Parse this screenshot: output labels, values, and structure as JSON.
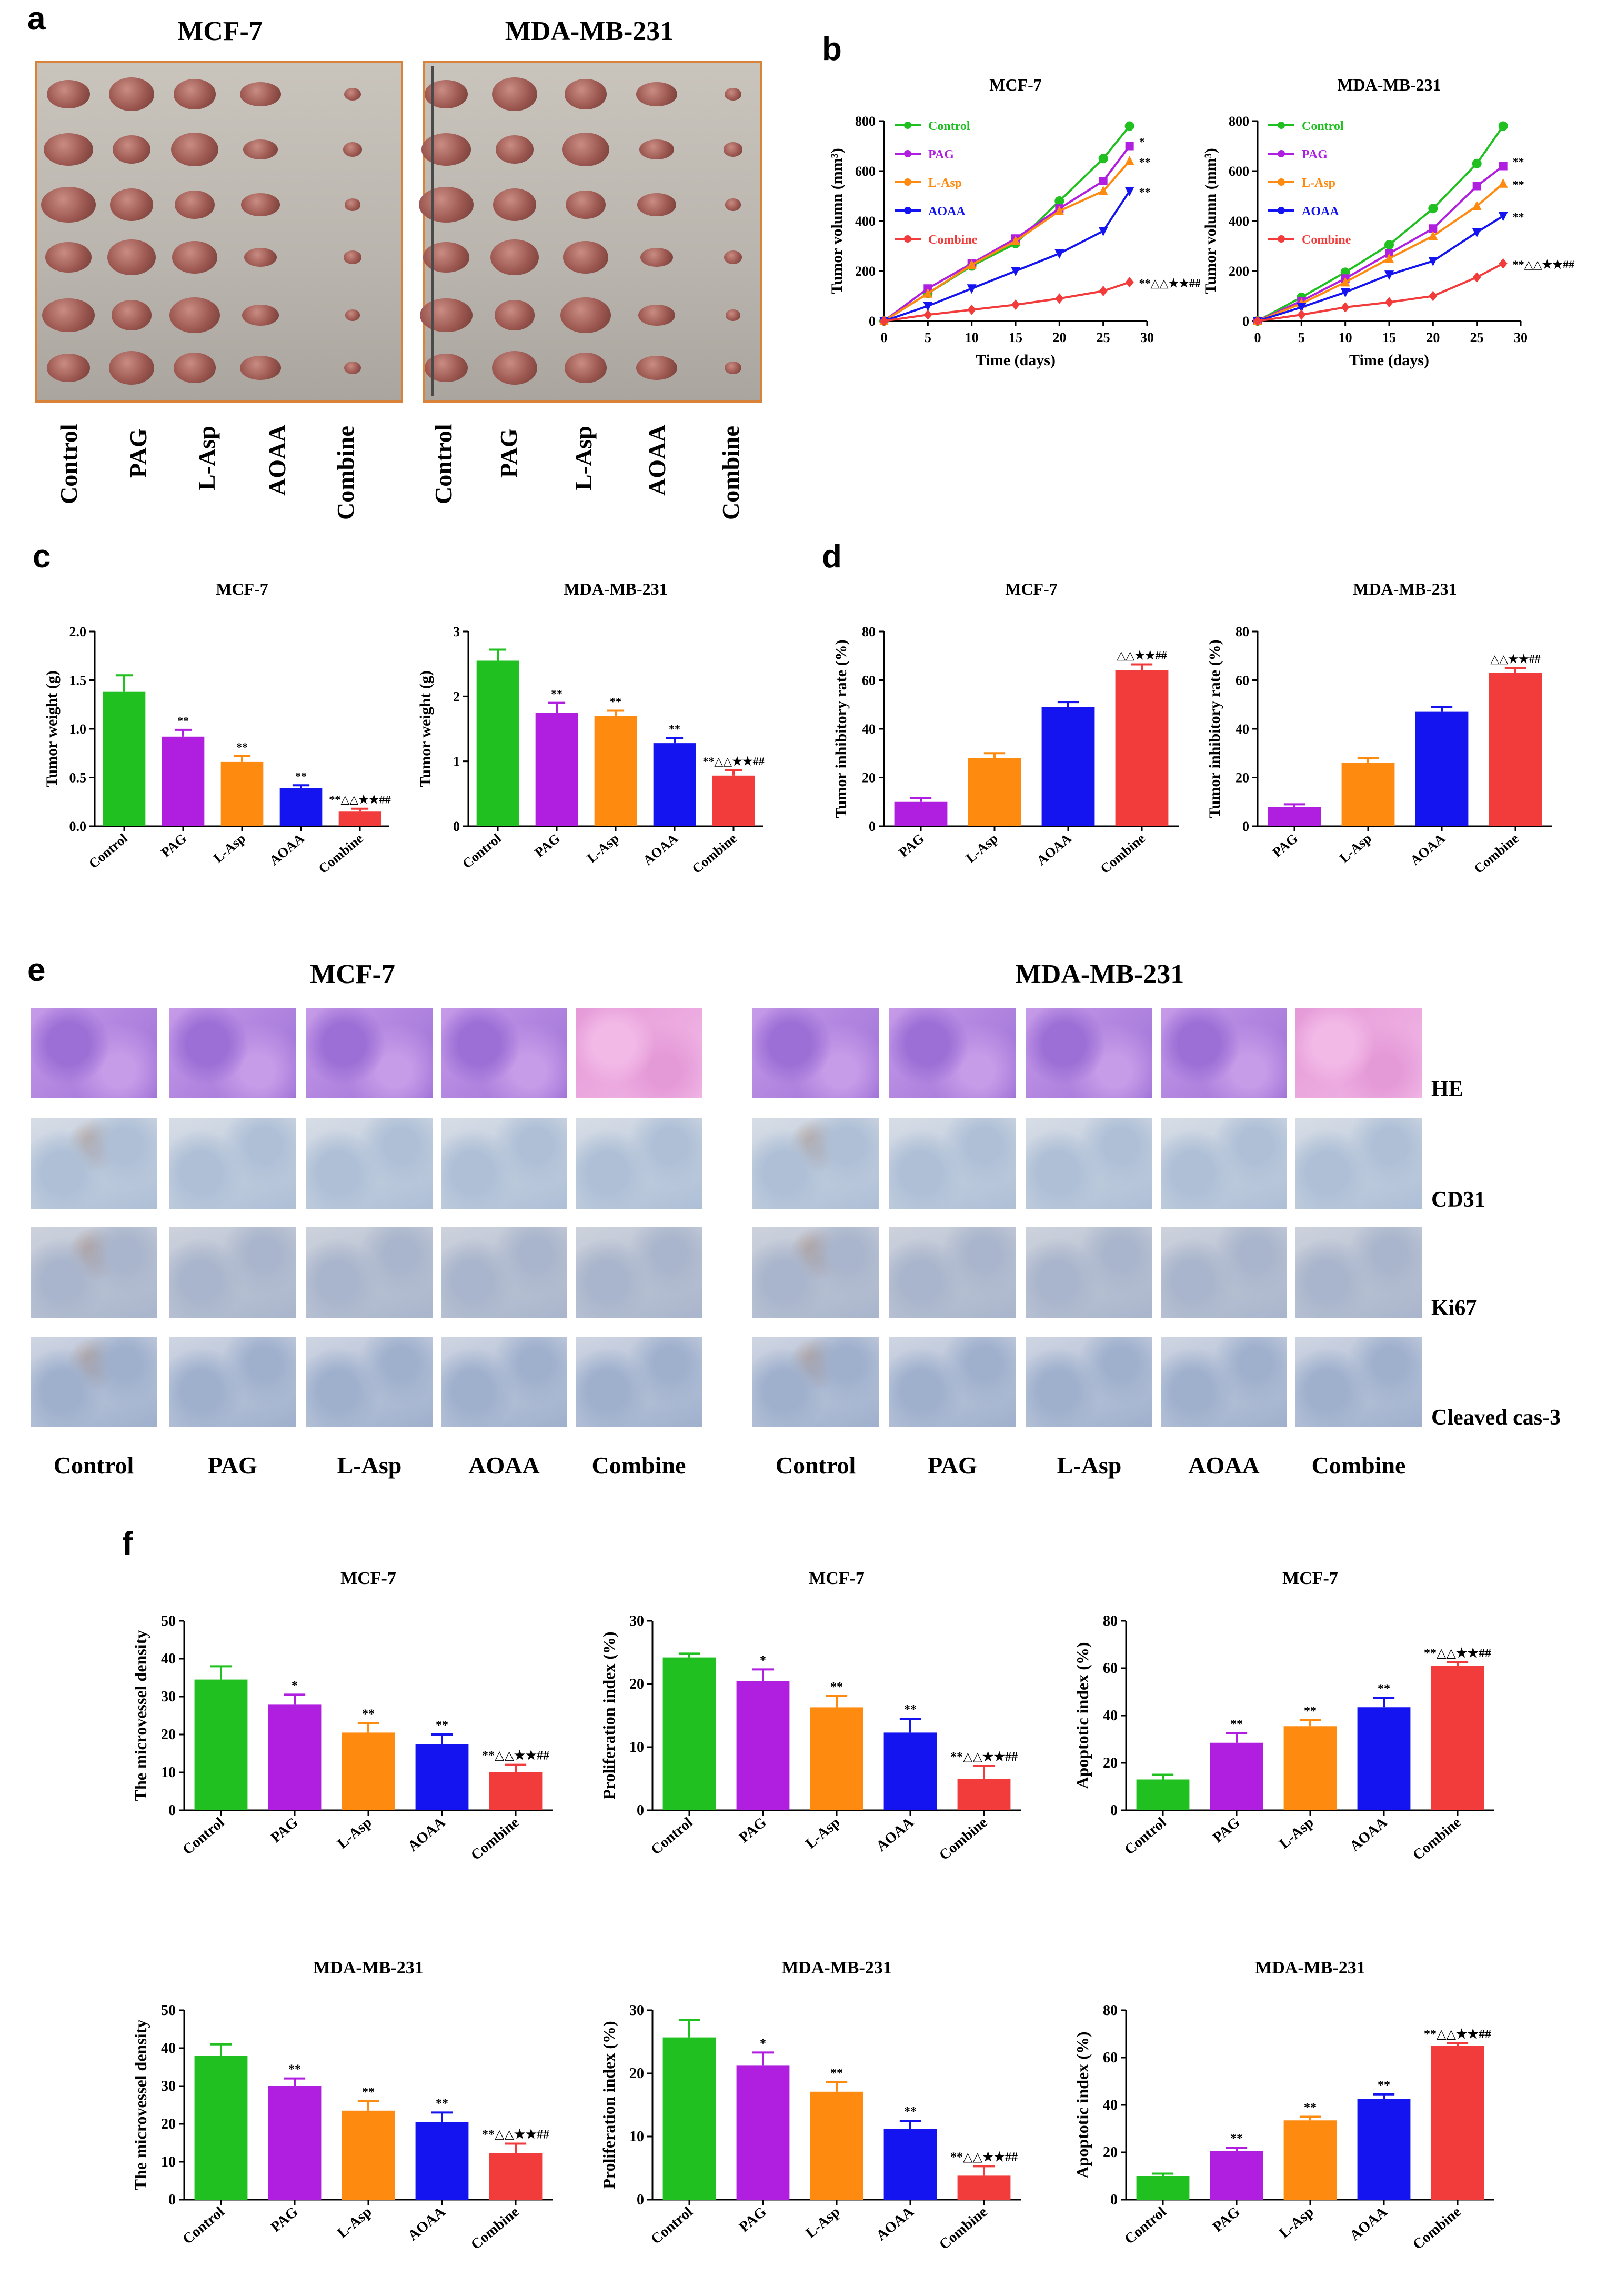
{
  "panels": {
    "a": "a",
    "b": "b",
    "c": "c",
    "d": "d",
    "e": "e",
    "f": "f"
  },
  "groups": [
    "Control",
    "PAG",
    "L-Asp",
    "AOAA",
    "Combine"
  ],
  "cell_lines": {
    "mcf7": "MCF-7",
    "mda": "MDA-MB-231"
  },
  "ihc_rows": [
    "HE",
    "CD31",
    "Ki67",
    "Cleaved cas-3"
  ],
  "colors": {
    "Control": "#1fc01f",
    "PAG": "#b01fe0",
    "L-Asp": "#ff8a10",
    "AOAA": "#1414f0",
    "Combine": "#f23b3b",
    "frame": "#d9823a"
  },
  "chart_data": [
    {
      "id": "b1",
      "type": "line",
      "title": "MCF-7",
      "xlabel": "Time (days)",
      "ylabel": "Tumor volumn (mm³)",
      "xlim": [
        0,
        30
      ],
      "ylim": [
        0,
        800
      ],
      "xticks": [
        0,
        5,
        10,
        15,
        20,
        25,
        30
      ],
      "yticks": [
        0,
        200,
        400,
        600,
        800
      ],
      "x": [
        0,
        5,
        10,
        15,
        20,
        25,
        28
      ],
      "series": [
        {
          "name": "Control",
          "values": [
            0,
            110,
            220,
            310,
            480,
            650,
            780
          ],
          "marker": "circle",
          "label": ""
        },
        {
          "name": "PAG",
          "values": [
            0,
            130,
            230,
            330,
            450,
            560,
            700
          ],
          "marker": "square",
          "label": "*"
        },
        {
          "name": "L-Asp",
          "values": [
            0,
            110,
            225,
            320,
            440,
            520,
            640
          ],
          "marker": "triangle-up",
          "label": "**"
        },
        {
          "name": "AOAA",
          "values": [
            0,
            60,
            130,
            200,
            270,
            360,
            520
          ],
          "marker": "triangle-down",
          "label": "**"
        },
        {
          "name": "Combine",
          "values": [
            0,
            25,
            45,
            65,
            90,
            120,
            155
          ],
          "marker": "diamond",
          "label": "**△△★★##"
        }
      ]
    },
    {
      "id": "b2",
      "type": "line",
      "title": "MDA-MB-231",
      "xlabel": "Time (days)",
      "ylabel": "Tumor volumn (mm³)",
      "xlim": [
        0,
        30
      ],
      "ylim": [
        0,
        800
      ],
      "xticks": [
        0,
        5,
        10,
        15,
        20,
        25,
        30
      ],
      "yticks": [
        0,
        200,
        400,
        600,
        800
      ],
      "x": [
        0,
        5,
        10,
        15,
        20,
        25,
        28
      ],
      "series": [
        {
          "name": "Control",
          "values": [
            0,
            95,
            195,
            305,
            450,
            630,
            780
          ],
          "marker": "circle",
          "label": ""
        },
        {
          "name": "PAG",
          "values": [
            0,
            80,
            170,
            270,
            370,
            540,
            620
          ],
          "marker": "square",
          "label": "**"
        },
        {
          "name": "L-Asp",
          "values": [
            0,
            70,
            155,
            250,
            340,
            460,
            550
          ],
          "marker": "triangle-up",
          "label": "**"
        },
        {
          "name": "AOAA",
          "values": [
            0,
            55,
            115,
            185,
            240,
            355,
            420
          ],
          "marker": "triangle-down",
          "label": "**"
        },
        {
          "name": "Combine",
          "values": [
            0,
            25,
            55,
            75,
            100,
            175,
            230
          ],
          "marker": "diamond",
          "label": "**△△★★##"
        }
      ]
    },
    {
      "id": "c1",
      "type": "bar",
      "title": "MCF-7",
      "ylabel": "Tumor weight (g)",
      "ylim": [
        0,
        2.0
      ],
      "yticks": [
        "0.0",
        "0.5",
        "1.0",
        "1.5",
        "2.0"
      ],
      "categories": [
        "Control",
        "PAG",
        "L-Asp",
        "AOAA",
        "Combine"
      ],
      "values": [
        1.38,
        0.92,
        0.66,
        0.39,
        0.15
      ],
      "errors": [
        0.17,
        0.07,
        0.06,
        0.03,
        0.03
      ],
      "annotations": [
        "",
        "**",
        "**",
        "**",
        "**△△★★##"
      ]
    },
    {
      "id": "c2",
      "type": "bar",
      "title": "MDA-MB-231",
      "ylabel": "Tumor weight (g)",
      "ylim": [
        0,
        3
      ],
      "yticks": [
        "0",
        "1",
        "2",
        "3"
      ],
      "categories": [
        "Control",
        "PAG",
        "L-Asp",
        "AOAA",
        "Combine"
      ],
      "values": [
        2.55,
        1.75,
        1.7,
        1.28,
        0.78
      ],
      "errors": [
        0.17,
        0.15,
        0.08,
        0.08,
        0.08
      ],
      "annotations": [
        "",
        "**",
        "**",
        "**",
        "**△△★★##"
      ]
    },
    {
      "id": "d1",
      "type": "bar",
      "title": "MCF-7",
      "ylabel": "Tumor inhibitory rate (%)",
      "ylim": [
        0,
        80
      ],
      "yticks": [
        "0",
        "20",
        "40",
        "60",
        "80"
      ],
      "categories": [
        "PAG",
        "L-Asp",
        "AOAA",
        "Combine"
      ],
      "values": [
        10,
        28,
        49,
        64
      ],
      "errors": [
        1.5,
        2,
        2,
        2.5
      ],
      "annotations": [
        "",
        "",
        "",
        "△△★★##"
      ]
    },
    {
      "id": "d2",
      "type": "bar",
      "title": "MDA-MB-231",
      "ylabel": "Tumor inhibitory rate (%)",
      "ylim": [
        0,
        80
      ],
      "yticks": [
        "0",
        "20",
        "40",
        "60",
        "80"
      ],
      "categories": [
        "PAG",
        "L-Asp",
        "AOAA",
        "Combine"
      ],
      "values": [
        8,
        26,
        47,
        63
      ],
      "errors": [
        1,
        2,
        2,
        2
      ],
      "annotations": [
        "",
        "",
        "",
        "△△★★##"
      ]
    },
    {
      "id": "f1",
      "type": "bar",
      "title": "MCF-7",
      "ylabel": "The microvessel density",
      "ylim": [
        0,
        50
      ],
      "yticks": [
        "0",
        "10",
        "20",
        "30",
        "40",
        "50"
      ],
      "categories": [
        "Control",
        "PAG",
        "L-Asp",
        "AOAA",
        "Combine"
      ],
      "values": [
        34.5,
        28,
        20.5,
        17.5,
        10
      ],
      "errors": [
        3.5,
        2.5,
        2.5,
        2.5,
        2
      ],
      "annotations": [
        "",
        "*",
        "**",
        "**",
        "**△△★★##"
      ]
    },
    {
      "id": "f2",
      "type": "bar",
      "title": "MCF-7",
      "ylabel": "Proliferation index (%)",
      "ylim": [
        0,
        30
      ],
      "yticks": [
        "0",
        "10",
        "20",
        "30"
      ],
      "categories": [
        "Control",
        "PAG",
        "L-Asp",
        "AOAA",
        "Combine"
      ],
      "values": [
        24.2,
        20.5,
        16.3,
        12.3,
        5
      ],
      "errors": [
        0.6,
        1.8,
        1.8,
        2.2,
        2
      ],
      "annotations": [
        "",
        "*",
        "**",
        "**",
        "**△△★★##"
      ]
    },
    {
      "id": "f3",
      "type": "bar",
      "title": "MCF-7",
      "ylabel": "Apoptotic index (%)",
      "ylim": [
        0,
        80
      ],
      "yticks": [
        "0",
        "20",
        "40",
        "60",
        "80"
      ],
      "categories": [
        "Control",
        "PAG",
        "L-Asp",
        "AOAA",
        "Combine"
      ],
      "values": [
        13,
        28.5,
        35.5,
        43.5,
        61
      ],
      "errors": [
        2,
        4,
        2.5,
        4,
        1.5
      ],
      "annotations": [
        "",
        "**",
        "**",
        "**",
        "**△△★★##"
      ]
    },
    {
      "id": "f4",
      "type": "bar",
      "title": "MDA-MB-231",
      "ylabel": "The microvessel density",
      "ylim": [
        0,
        50
      ],
      "yticks": [
        "0",
        "10",
        "20",
        "30",
        "40",
        "50"
      ],
      "categories": [
        "Control",
        "PAG",
        "L-Asp",
        "AOAA",
        "Combine"
      ],
      "values": [
        38,
        30,
        23.5,
        20.5,
        12.3
      ],
      "errors": [
        3,
        2,
        2.5,
        2.5,
        2.5
      ],
      "annotations": [
        "",
        "**",
        "**",
        "**",
        "**△△★★##"
      ]
    },
    {
      "id": "f5",
      "type": "bar",
      "title": "MDA-MB-231",
      "ylabel": "Proliferation index (%)",
      "ylim": [
        0,
        30
      ],
      "yticks": [
        "0",
        "10",
        "20",
        "30"
      ],
      "categories": [
        "Control",
        "PAG",
        "L-Asp",
        "AOAA",
        "Combine"
      ],
      "values": [
        25.7,
        21.3,
        17.1,
        11.2,
        3.8
      ],
      "errors": [
        2.8,
        2,
        1.5,
        1.3,
        1.5
      ],
      "annotations": [
        "",
        "*",
        "**",
        "**",
        "**△△★★##"
      ]
    },
    {
      "id": "f6",
      "type": "bar",
      "title": "MDA-MB-231",
      "ylabel": "Apoptotic index (%)",
      "ylim": [
        0,
        80
      ],
      "yticks": [
        "0",
        "20",
        "40",
        "60",
        "80"
      ],
      "categories": [
        "Control",
        "PAG",
        "L-Asp",
        "AOAA",
        "Combine"
      ],
      "values": [
        10,
        20.5,
        33.5,
        42.5,
        65
      ],
      "errors": [
        1,
        1.5,
        1.5,
        2,
        1
      ],
      "annotations": [
        "",
        "**",
        "**",
        "**",
        "**△△★★##"
      ]
    }
  ]
}
